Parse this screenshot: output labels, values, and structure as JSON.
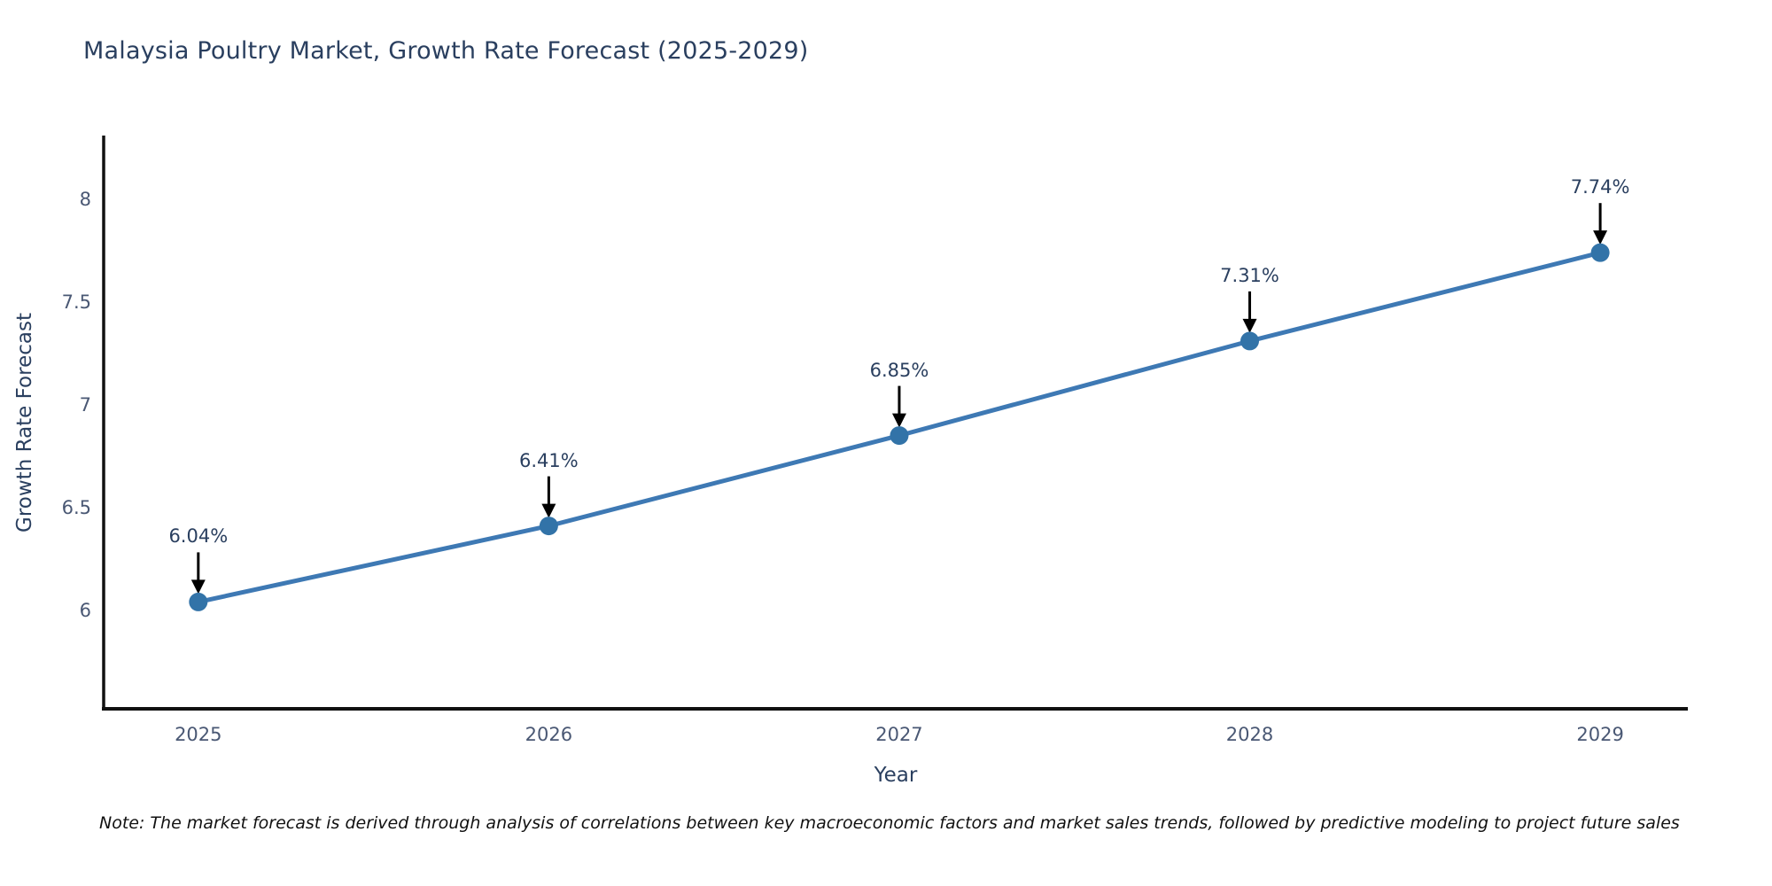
{
  "title": "Malaysia Poultry Market, Growth Rate Forecast (2025-2029)",
  "note": "Note: The market forecast is derived through analysis of correlations between key macroeconomic factors and market sales trends, followed by predictive modeling to project future sales",
  "chart_data": {
    "type": "line",
    "title": "Malaysia Poultry Market, Growth Rate Forecast (2025-2029)",
    "xlabel": "Year",
    "ylabel": "Growth Rate Forecast",
    "x": [
      2025,
      2026,
      2027,
      2028,
      2029
    ],
    "series": [
      {
        "name": "Growth Rate Forecast",
        "values": [
          6.04,
          6.41,
          6.85,
          7.31,
          7.74
        ]
      }
    ],
    "point_labels": [
      "6.04%",
      "6.41%",
      "6.85%",
      "7.31%",
      "7.74%"
    ],
    "x_tick_labels": [
      "2025",
      "2026",
      "2027",
      "2028",
      "2029"
    ],
    "y_tick_labels": [
      "6",
      "6.5",
      "7",
      "7.5",
      "8"
    ],
    "y_tick_values": [
      6,
      6.5,
      7,
      7.5,
      8
    ],
    "xlim": [
      2024.73,
      2029.25
    ],
    "ylim": [
      5.52,
      8.31
    ],
    "grid": false,
    "legend": false,
    "annotations_have_arrows": true,
    "colors": {
      "line": "#3e79b4",
      "marker": "#3273a8",
      "axis_line": "#111111",
      "title_text": "#2a3f5f",
      "tick_text": "#4a5874",
      "annotation_text": "#2a3f5f",
      "arrow": "#000000",
      "note_text": "#111111",
      "background": "#ffffff"
    }
  }
}
